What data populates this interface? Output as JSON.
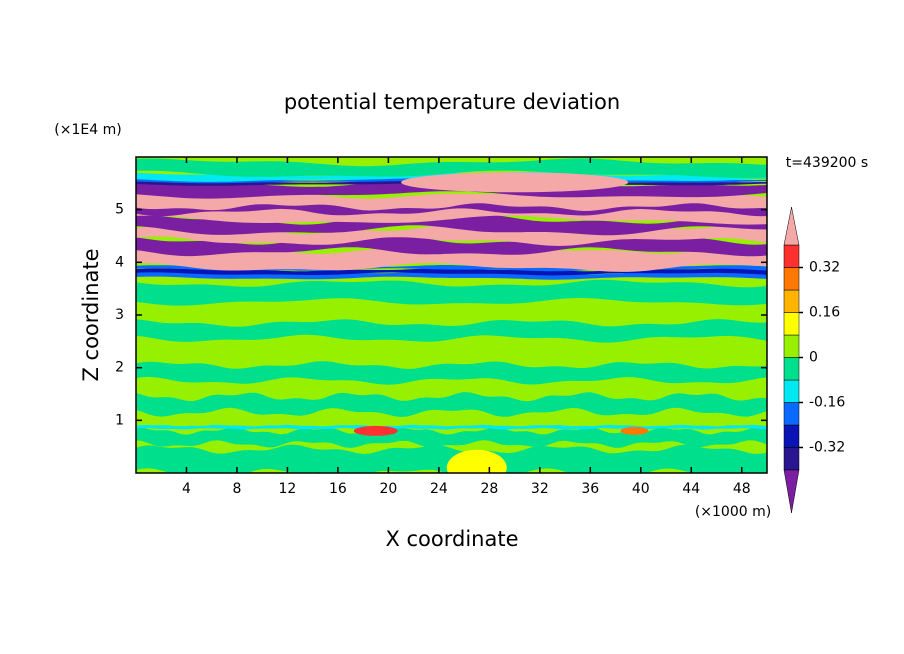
{
  "chart_data": {
    "type": "contour",
    "title": "potential temperature deviation",
    "xlabel": "X coordinate",
    "ylabel": "Z coordinate",
    "x_unit": "(×1000 m)",
    "y_unit": "(×1E4 m)",
    "time_label": "t=439200 s",
    "xlim": [
      0,
      50
    ],
    "xticks": [
      4,
      8,
      12,
      16,
      20,
      24,
      28,
      32,
      36,
      40,
      44,
      48
    ],
    "ylim": [
      0,
      6
    ],
    "yticks": [
      1,
      2,
      3,
      4,
      5
    ],
    "colorbar": {
      "levels": [
        -0.4,
        -0.32,
        -0.24,
        -0.16,
        -0.08,
        0,
        0.08,
        0.16,
        0.24,
        0.32,
        0.4
      ],
      "colors": [
        "#7b1fa2",
        "#2a1590",
        "#0a14b4",
        "#0a6aff",
        "#00e8f0",
        "#00e08c",
        "#96f000",
        "#ffff00",
        "#ffb400",
        "#ff7800",
        "#ff3030",
        "#f4a8a8"
      ],
      "ticks": [
        -0.32,
        -0.16,
        0,
        0.16,
        0.32
      ]
    }
  }
}
